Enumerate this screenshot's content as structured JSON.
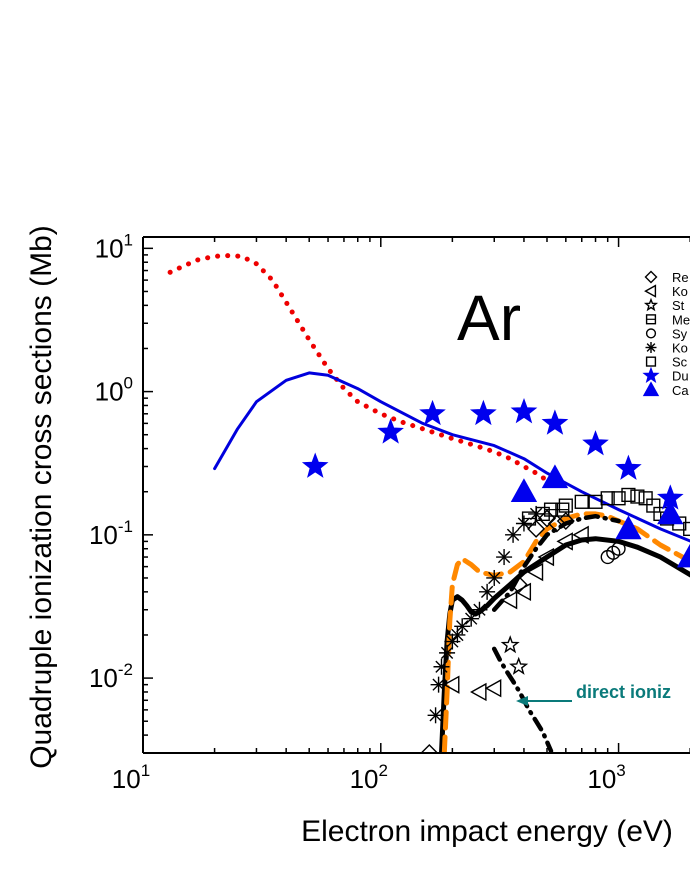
{
  "chart_data": {
    "type": "scatter",
    "panel_label": "Ar",
    "xlabel": "Electron impact energy (eV)",
    "ylabel": "Quadruple ionization cross sections (Mb)",
    "xscale": "log",
    "yscale": "log",
    "xlim": [
      10,
      2200
    ],
    "ylim": [
      0.003,
      12
    ],
    "x_ticks": [
      {
        "base": "10",
        "exp": "1",
        "value": 10
      },
      {
        "base": "10",
        "exp": "2",
        "value": 100
      },
      {
        "base": "10",
        "exp": "3",
        "value": 1000
      }
    ],
    "y_ticks": [
      {
        "base": "10",
        "exp": "1",
        "value": 10
      },
      {
        "base": "10",
        "exp": "0",
        "value": 1
      },
      {
        "base": "10",
        "exp": "-1",
        "value": 0.1
      },
      {
        "base": "10",
        "exp": "-2",
        "value": 0.01
      }
    ],
    "legend": [
      {
        "label": "Re",
        "marker": "diamond",
        "color": "#000000",
        "filled": false
      },
      {
        "label": "Ko",
        "marker": "triangle-left",
        "color": "#000000",
        "filled": false
      },
      {
        "label": "St",
        "marker": "star",
        "color": "#000000",
        "filled": false
      },
      {
        "label": "Me",
        "marker": "square-cross",
        "color": "#000000",
        "filled": false
      },
      {
        "label": "Sy",
        "marker": "circle",
        "color": "#000000",
        "filled": false
      },
      {
        "label": "Ko",
        "marker": "asterisk",
        "color": "#000000",
        "filled": false
      },
      {
        "label": "Sc",
        "marker": "square",
        "color": "#000000",
        "filled": false
      },
      {
        "label": "Du",
        "marker": "star",
        "color": "#0000ee",
        "filled": true
      },
      {
        "label": "Ca",
        "marker": "triangle-up",
        "color": "#0000ee",
        "filled": true
      }
    ],
    "annotation": {
      "text": "direct ioniz",
      "color": "#0a7a7a",
      "arrow_to": [
        400,
        0.0068
      ]
    },
    "curves": [
      {
        "name": "red dotted",
        "style": "dotted",
        "color": "#ee0000",
        "x": [
          13,
          15,
          17,
          20,
          23,
          26,
          30,
          35,
          40,
          50,
          60,
          70,
          80,
          100,
          120,
          150,
          200,
          250,
          300,
          350,
          400,
          450,
          500
        ],
        "y": [
          6.8,
          7.6,
          8.3,
          8.8,
          8.9,
          8.8,
          7.8,
          6.0,
          4.2,
          2.3,
          1.45,
          1.05,
          0.85,
          0.7,
          0.62,
          0.55,
          0.47,
          0.42,
          0.38,
          0.34,
          0.3,
          0.27,
          0.24
        ]
      },
      {
        "name": "blue solid",
        "style": "solid",
        "color": "#0000dd",
        "x": [
          20,
          25,
          30,
          40,
          50,
          60,
          80,
          100,
          150,
          200,
          300,
          400,
          500,
          700,
          1000,
          1500,
          2200
        ],
        "y": [
          0.29,
          0.55,
          0.85,
          1.2,
          1.35,
          1.3,
          1.05,
          0.85,
          0.6,
          0.5,
          0.42,
          0.34,
          0.27,
          0.2,
          0.15,
          0.11,
          0.085
        ]
      },
      {
        "name": "black solid",
        "style": "thick",
        "color": "#000000",
        "x": [
          180,
          185,
          190,
          195,
          200,
          210,
          220,
          230,
          240,
          250,
          260,
          280,
          300,
          350,
          400,
          500,
          600,
          700,
          800,
          1000,
          1200,
          1500,
          2200
        ],
        "y": [
          0.003,
          0.008,
          0.018,
          0.028,
          0.035,
          0.037,
          0.035,
          0.032,
          0.029,
          0.028,
          0.029,
          0.032,
          0.036,
          0.045,
          0.055,
          0.07,
          0.085,
          0.092,
          0.094,
          0.09,
          0.082,
          0.07,
          0.048
        ]
      },
      {
        "name": "orange dashed",
        "style": "dashed",
        "color": "#ff8800",
        "x": [
          185,
          190,
          195,
          200,
          210,
          220,
          240,
          260,
          300,
          350,
          400,
          450,
          500,
          600,
          700,
          800,
          900,
          1000,
          1200,
          1500,
          2200
        ],
        "y": [
          0.003,
          0.008,
          0.025,
          0.045,
          0.062,
          0.068,
          0.062,
          0.055,
          0.052,
          0.055,
          0.065,
          0.09,
          0.11,
          0.13,
          0.14,
          0.14,
          0.135,
          0.125,
          0.11,
          0.085,
          0.06
        ]
      },
      {
        "name": "black dashdot",
        "style": "dashdot",
        "color": "#000000",
        "x": [
          300,
          350,
          400,
          450,
          500,
          600,
          700,
          800,
          1000
        ],
        "y": [
          0.03,
          0.04,
          0.06,
          0.08,
          0.1,
          0.12,
          0.13,
          0.135,
          0.125
        ]
      },
      {
        "name": "direct ionization",
        "style": "dashdot",
        "color": "#000000",
        "x": [
          300,
          320,
          340,
          360,
          380,
          400,
          420,
          450,
          480,
          500,
          520
        ],
        "y": [
          0.016,
          0.013,
          0.011,
          0.0095,
          0.0082,
          0.007,
          0.006,
          0.005,
          0.0042,
          0.0036,
          0.0031
        ]
      }
    ],
    "series": [
      {
        "name": "Re",
        "marker": "diamond",
        "color": "#000000",
        "filled": false,
        "x": [
          160,
          380,
          450,
          500,
          550,
          600
        ],
        "y": [
          0.003,
          0.045,
          0.11,
          0.13,
          0.12,
          0.125
        ]
      },
      {
        "name": "Ko",
        "marker": "triangle-left",
        "color": "#000000",
        "filled": false,
        "x": [
          200,
          260,
          300,
          350,
          400,
          450,
          500,
          600,
          700
        ],
        "y": [
          0.009,
          0.008,
          0.0085,
          0.035,
          0.04,
          0.055,
          0.07,
          0.09,
          0.1
        ]
      },
      {
        "name": "St",
        "marker": "star",
        "color": "#000000",
        "filled": false,
        "x": [
          350,
          380
        ],
        "y": [
          0.017,
          0.012
        ]
      },
      {
        "name": "Me",
        "marker": "square-cross",
        "color": "#000000",
        "filled": false,
        "x": [
          420,
          480,
          520,
          580
        ],
        "y": [
          0.13,
          0.14,
          0.15,
          0.15
        ]
      },
      {
        "name": "Sy",
        "marker": "circle",
        "color": "#000000",
        "filled": false,
        "x": [
          900,
          950,
          1000
        ],
        "y": [
          0.07,
          0.075,
          0.08
        ]
      },
      {
        "name": "Ko",
        "marker": "asterisk",
        "color": "#000000",
        "filled": false,
        "x": [
          170,
          175,
          180,
          190,
          200,
          210,
          220,
          240,
          260,
          280,
          300,
          330,
          360,
          400,
          450
        ],
        "y": [
          0.0055,
          0.009,
          0.012,
          0.015,
          0.018,
          0.02,
          0.023,
          0.026,
          0.03,
          0.04,
          0.05,
          0.07,
          0.1,
          0.12,
          0.14
        ]
      },
      {
        "name": "Sc",
        "marker": "square",
        "color": "#000000",
        "filled": false,
        "x": [
          600,
          700,
          800,
          900,
          1000,
          1100,
          1200,
          1300,
          1400,
          1500,
          1600,
          1800,
          2000
        ],
        "y": [
          0.16,
          0.17,
          0.17,
          0.18,
          0.18,
          0.19,
          0.185,
          0.18,
          0.16,
          0.14,
          0.13,
          0.12,
          0.11
        ]
      },
      {
        "name": "Du",
        "marker": "star",
        "color": "#0000ee",
        "filled": true,
        "x": [
          53,
          110,
          165,
          270,
          400,
          540,
          800,
          1100,
          1650
        ],
        "y": [
          0.3,
          0.52,
          0.7,
          0.7,
          0.72,
          0.6,
          0.43,
          0.29,
          0.18
        ]
      },
      {
        "name": "Ca",
        "marker": "triangle-up",
        "color": "#0000ee",
        "filled": true,
        "x": [
          400,
          540,
          1100,
          1650,
          2000
        ],
        "y": [
          0.2,
          0.25,
          0.11,
          0.14,
          0.07
        ]
      }
    ]
  }
}
